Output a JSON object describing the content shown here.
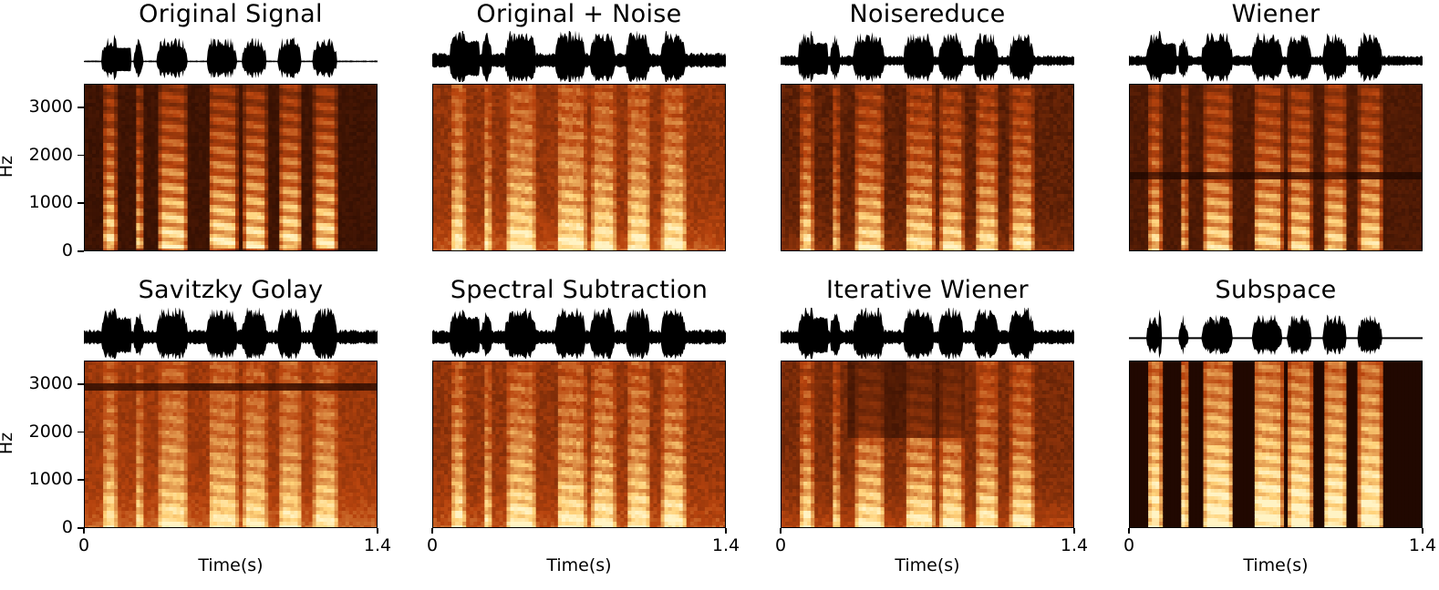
{
  "chart_data": [
    {
      "type": "heatmap",
      "title": "Original Signal",
      "ylabel": "Hz",
      "xlabel": "",
      "yticks": [
        "0",
        "1000",
        "2000",
        "3000"
      ],
      "xticks": [],
      "xlim": [
        0,
        1.4
      ],
      "ylim": [
        0,
        3500
      ],
      "style": "clean"
    },
    {
      "type": "heatmap",
      "title": "Original + Noise",
      "ylabel": "",
      "xlabel": "",
      "yticks": [],
      "xticks": [],
      "xlim": [
        0,
        1.4
      ],
      "ylim": [
        0,
        3500
      ],
      "style": "noisy"
    },
    {
      "type": "heatmap",
      "title": "Noisereduce",
      "ylabel": "",
      "xlabel": "",
      "yticks": [],
      "xticks": [],
      "xlim": [
        0,
        1.4
      ],
      "ylim": [
        0,
        3500
      ],
      "style": "reduced"
    },
    {
      "type": "heatmap",
      "title": "Wiener",
      "ylabel": "",
      "xlabel": "",
      "yticks": [],
      "xticks": [],
      "xlim": [
        0,
        1.4
      ],
      "ylim": [
        0,
        3500
      ],
      "style": "wiener"
    },
    {
      "type": "heatmap",
      "title": "Savitzky Golay",
      "ylabel": "Hz",
      "xlabel": "Time(s)",
      "yticks": [
        "0",
        "1000",
        "2000",
        "3000"
      ],
      "xticks": [
        "0",
        "1.4"
      ],
      "xlim": [
        0,
        1.4
      ],
      "ylim": [
        0,
        3500
      ],
      "style": "savgol"
    },
    {
      "type": "heatmap",
      "title": "Spectral Subtraction",
      "ylabel": "",
      "xlabel": "Time(s)",
      "yticks": [],
      "xticks": [
        "0",
        "1.4"
      ],
      "xlim": [
        0,
        1.4
      ],
      "ylim": [
        0,
        3500
      ],
      "style": "noisy"
    },
    {
      "type": "heatmap",
      "title": "Iterative Wiener",
      "ylabel": "",
      "xlabel": "Time(s)",
      "yticks": [],
      "xticks": [
        "0",
        "1.4"
      ],
      "xlim": [
        0,
        1.4
      ],
      "ylim": [
        0,
        3500
      ],
      "style": "iterative"
    },
    {
      "type": "heatmap",
      "title": "Subspace",
      "ylabel": "",
      "xlabel": "Time(s)",
      "yticks": [],
      "xticks": [
        "0",
        "1.4"
      ],
      "xlim": [
        0,
        1.4
      ],
      "ylim": [
        0,
        3500
      ],
      "style": "subspace"
    }
  ],
  "colors": {
    "dark": "#1a0500",
    "mid": "#b8440e",
    "bright": "#ffd27a",
    "peak": "#fff3c4",
    "wave": "#000000"
  }
}
